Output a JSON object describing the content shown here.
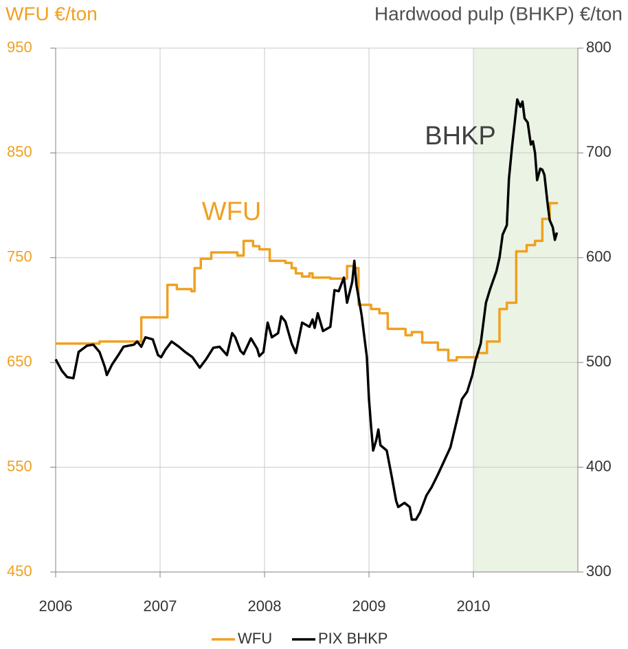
{
  "chart_data": {
    "type": "line",
    "y_label": "WFU €/ton",
    "y2_label": "Hardwood pulp (BHKP) €/ton",
    "annotations": [
      "WFU",
      "BHKP"
    ],
    "xlim": [
      2006,
      2011
    ],
    "xticks": [
      2006,
      2007,
      2008,
      2009,
      2010
    ],
    "ylim": [
      450,
      950
    ],
    "yticks": [
      450,
      550,
      650,
      750,
      850,
      950
    ],
    "y2lim": [
      300,
      800
    ],
    "y2ticks": [
      300,
      400,
      500,
      600,
      700,
      800
    ],
    "grid": true,
    "highlight": [
      2010,
      2011
    ],
    "highlight_color": "#eaf3e4",
    "legend": "bottom",
    "series": [
      {
        "name": "WFU",
        "color": "#f0a020",
        "axis": "y",
        "x": [
          2006.0,
          2006.42,
          2006.42,
          2006.82,
          2006.82,
          2007.07,
          2007.07,
          2007.16,
          2007.16,
          2007.3,
          2007.3,
          2007.33,
          2007.33,
          2007.39,
          2007.39,
          2007.49,
          2007.49,
          2007.74,
          2007.74,
          2007.8,
          2007.8,
          2007.89,
          2007.89,
          2007.95,
          2007.95,
          2008.05,
          2008.05,
          2008.2,
          2008.2,
          2008.26,
          2008.26,
          2008.3,
          2008.3,
          2008.36,
          2008.36,
          2008.43,
          2008.43,
          2008.46,
          2008.46,
          2008.63,
          2008.63,
          2008.79,
          2008.79,
          2008.86,
          2008.86,
          2008.9,
          2008.9,
          2009.02,
          2009.02,
          2009.1,
          2009.1,
          2009.18,
          2009.18,
          2009.35,
          2009.35,
          2009.41,
          2009.41,
          2009.51,
          2009.51,
          2009.66,
          2009.66,
          2009.76,
          2009.76,
          2009.84,
          2009.84,
          2010.04,
          2010.04,
          2010.13,
          2010.13,
          2010.25,
          2010.25,
          2010.32,
          2010.32,
          2010.41,
          2010.41,
          2010.51,
          2010.51,
          2010.59,
          2010.59,
          2010.66,
          2010.66,
          2010.73,
          2010.73,
          2010.81
        ],
        "values": [
          668,
          668,
          670,
          670,
          693,
          693,
          724,
          724,
          720,
          720,
          718,
          718,
          740,
          740,
          749,
          749,
          755,
          755,
          752,
          752,
          766,
          766,
          761,
          761,
          758,
          758,
          747,
          747,
          745,
          745,
          740,
          740,
          735,
          735,
          732,
          732,
          735,
          735,
          731,
          731,
          730,
          730,
          742,
          742,
          740,
          740,
          705,
          705,
          701,
          701,
          697,
          697,
          682,
          682,
          676,
          676,
          679,
          679,
          669,
          669,
          662,
          662,
          652,
          652,
          655,
          655,
          659,
          659,
          670,
          670,
          701,
          701,
          707,
          707,
          756,
          756,
          762,
          762,
          766,
          766,
          787,
          787,
          802,
          802
        ]
      },
      {
        "name": "PIX BHKP",
        "color": "#000000",
        "axis": "y2",
        "x": [
          2006.0,
          2006.06,
          2006.11,
          2006.17,
          2006.22,
          2006.3,
          2006.36,
          2006.42,
          2006.47,
          2006.49,
          2006.54,
          2006.6,
          2006.65,
          2006.75,
          2006.78,
          2006.82,
          2006.86,
          2006.93,
          2006.98,
          2007.01,
          2007.05,
          2007.11,
          2007.18,
          2007.24,
          2007.31,
          2007.38,
          2007.44,
          2007.51,
          2007.57,
          2007.64,
          2007.69,
          2007.72,
          2007.77,
          2007.8,
          2007.87,
          2007.93,
          2007.95,
          2007.99,
          2008.03,
          2008.07,
          2008.13,
          2008.16,
          2008.2,
          2008.26,
          2008.3,
          2008.36,
          2008.43,
          2008.46,
          2008.48,
          2008.51,
          2008.56,
          2008.63,
          2008.67,
          2008.71,
          2008.76,
          2008.79,
          2008.84,
          2008.86,
          2008.88,
          2008.93,
          2008.98,
          2009.0,
          2009.02,
          2009.04,
          2009.07,
          2009.09,
          2009.11,
          2009.17,
          2009.22,
          2009.26,
          2009.28,
          2009.34,
          2009.39,
          2009.41,
          2009.45,
          2009.49,
          2009.55,
          2009.6,
          2009.66,
          2009.72,
          2009.78,
          2009.84,
          2009.89,
          2009.94,
          2009.99,
          2010.02,
          2010.07,
          2010.12,
          2010.16,
          2010.22,
          2010.25,
          2010.28,
          2010.32,
          2010.34,
          2010.37,
          2010.42,
          2010.45,
          2010.47,
          2010.49,
          2010.52,
          2010.55,
          2010.57,
          2010.59,
          2010.61,
          2010.64,
          2010.66,
          2010.68,
          2010.71,
          2010.73,
          2010.76,
          2010.78,
          2010.8
        ],
        "values": [
          503,
          492,
          486,
          485,
          510,
          516,
          517,
          510,
          496,
          488,
          498,
          507,
          515,
          517,
          520,
          515,
          524,
          522,
          507,
          505,
          512,
          520,
          515,
          510,
          505,
          495,
          503,
          514,
          515,
          507,
          528,
          524,
          511,
          508,
          523,
          513,
          506,
          510,
          538,
          524,
          528,
          544,
          539,
          518,
          509,
          538,
          534,
          541,
          533,
          547,
          530,
          534,
          569,
          568,
          581,
          557,
          577,
          597,
          574,
          545,
          505,
          465,
          439,
          416,
          426,
          436,
          421,
          416,
          390,
          368,
          362,
          366,
          362,
          350,
          350,
          357,
          373,
          381,
          393,
          406,
          419,
          444,
          465,
          472,
          488,
          502,
          518,
          557,
          570,
          587,
          600,
          622,
          631,
          675,
          706,
          751,
          744,
          749,
          733,
          729,
          708,
          711,
          700,
          674,
          685,
          684,
          679,
          652,
          636,
          629,
          617,
          624
        ]
      }
    ]
  }
}
